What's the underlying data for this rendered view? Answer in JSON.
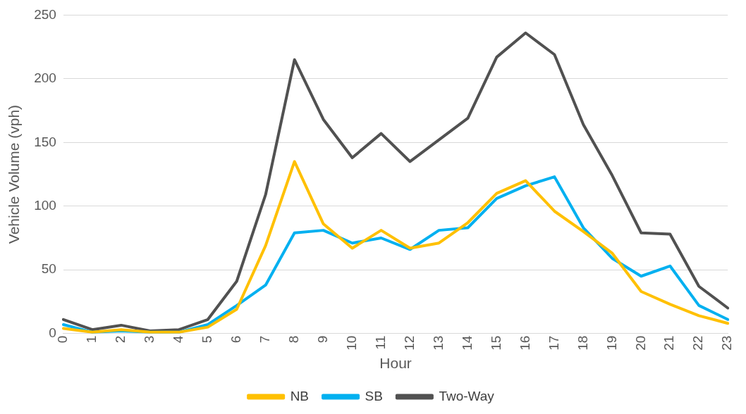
{
  "chart_data": {
    "type": "line",
    "xlabel": "Hour",
    "ylabel": "Vehicle Volume (vph)",
    "categories": [
      "0",
      "1",
      "2",
      "3",
      "4",
      "5",
      "6",
      "7",
      "8",
      "9",
      "10",
      "11",
      "12",
      "13",
      "14",
      "15",
      "16",
      "17",
      "18",
      "19",
      "20",
      "21",
      "22",
      "23"
    ],
    "series": [
      {
        "name": "NB",
        "color": "#ffc000",
        "values": [
          4,
          1,
          3,
          1,
          1,
          5,
          19,
          69,
          135,
          86,
          67,
          81,
          67,
          71,
          87,
          110,
          120,
          96,
          80,
          63,
          33,
          23,
          14,
          8
        ]
      },
      {
        "name": "SB",
        "color": "#00b0f0",
        "values": [
          7,
          1,
          2,
          1,
          1,
          7,
          22,
          38,
          79,
          81,
          71,
          75,
          66,
          81,
          83,
          106,
          116,
          123,
          83,
          59,
          45,
          53,
          22,
          11
        ]
      },
      {
        "name": "Two-Way",
        "color": "#515151",
        "values": [
          11,
          3,
          6.5,
          2,
          3,
          11,
          41,
          109,
          215,
          168,
          138,
          157,
          135,
          152,
          169,
          217,
          236,
          219,
          164,
          124,
          79,
          78,
          37,
          20
        ]
      }
    ],
    "ylim": [
      0,
      250
    ],
    "yticks": [
      0,
      50,
      100,
      150,
      200,
      250
    ],
    "grid": "y",
    "legend": "bottom",
    "marker": "none",
    "line_style": "solid"
  }
}
